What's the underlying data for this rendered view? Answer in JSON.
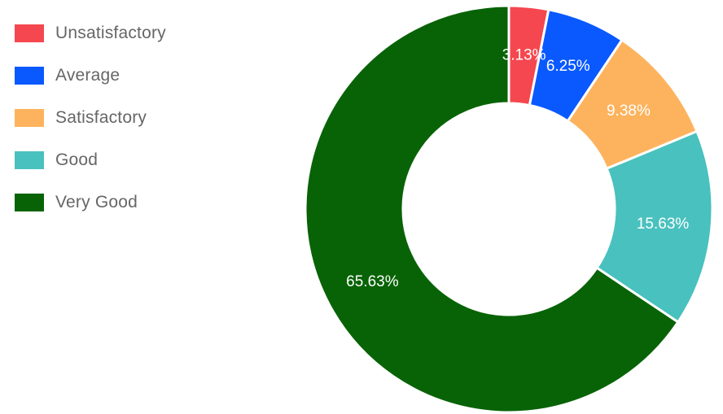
{
  "chart_data": {
    "type": "pie",
    "categories": [
      "Unsatisfactory",
      "Average",
      "Satisfactory",
      "Good",
      "Very Good"
    ],
    "values": [
      3.13,
      6.25,
      9.38,
      15.63,
      65.63
    ],
    "value_labels": [
      "3.13%",
      "6.25%",
      "9.38%",
      "15.63%",
      "65.63%"
    ],
    "colors": [
      "#f5474f",
      "#0a59ff",
      "#fdb35d",
      "#49c1be",
      "#086306"
    ],
    "legend_position": "top-left",
    "title": ""
  }
}
